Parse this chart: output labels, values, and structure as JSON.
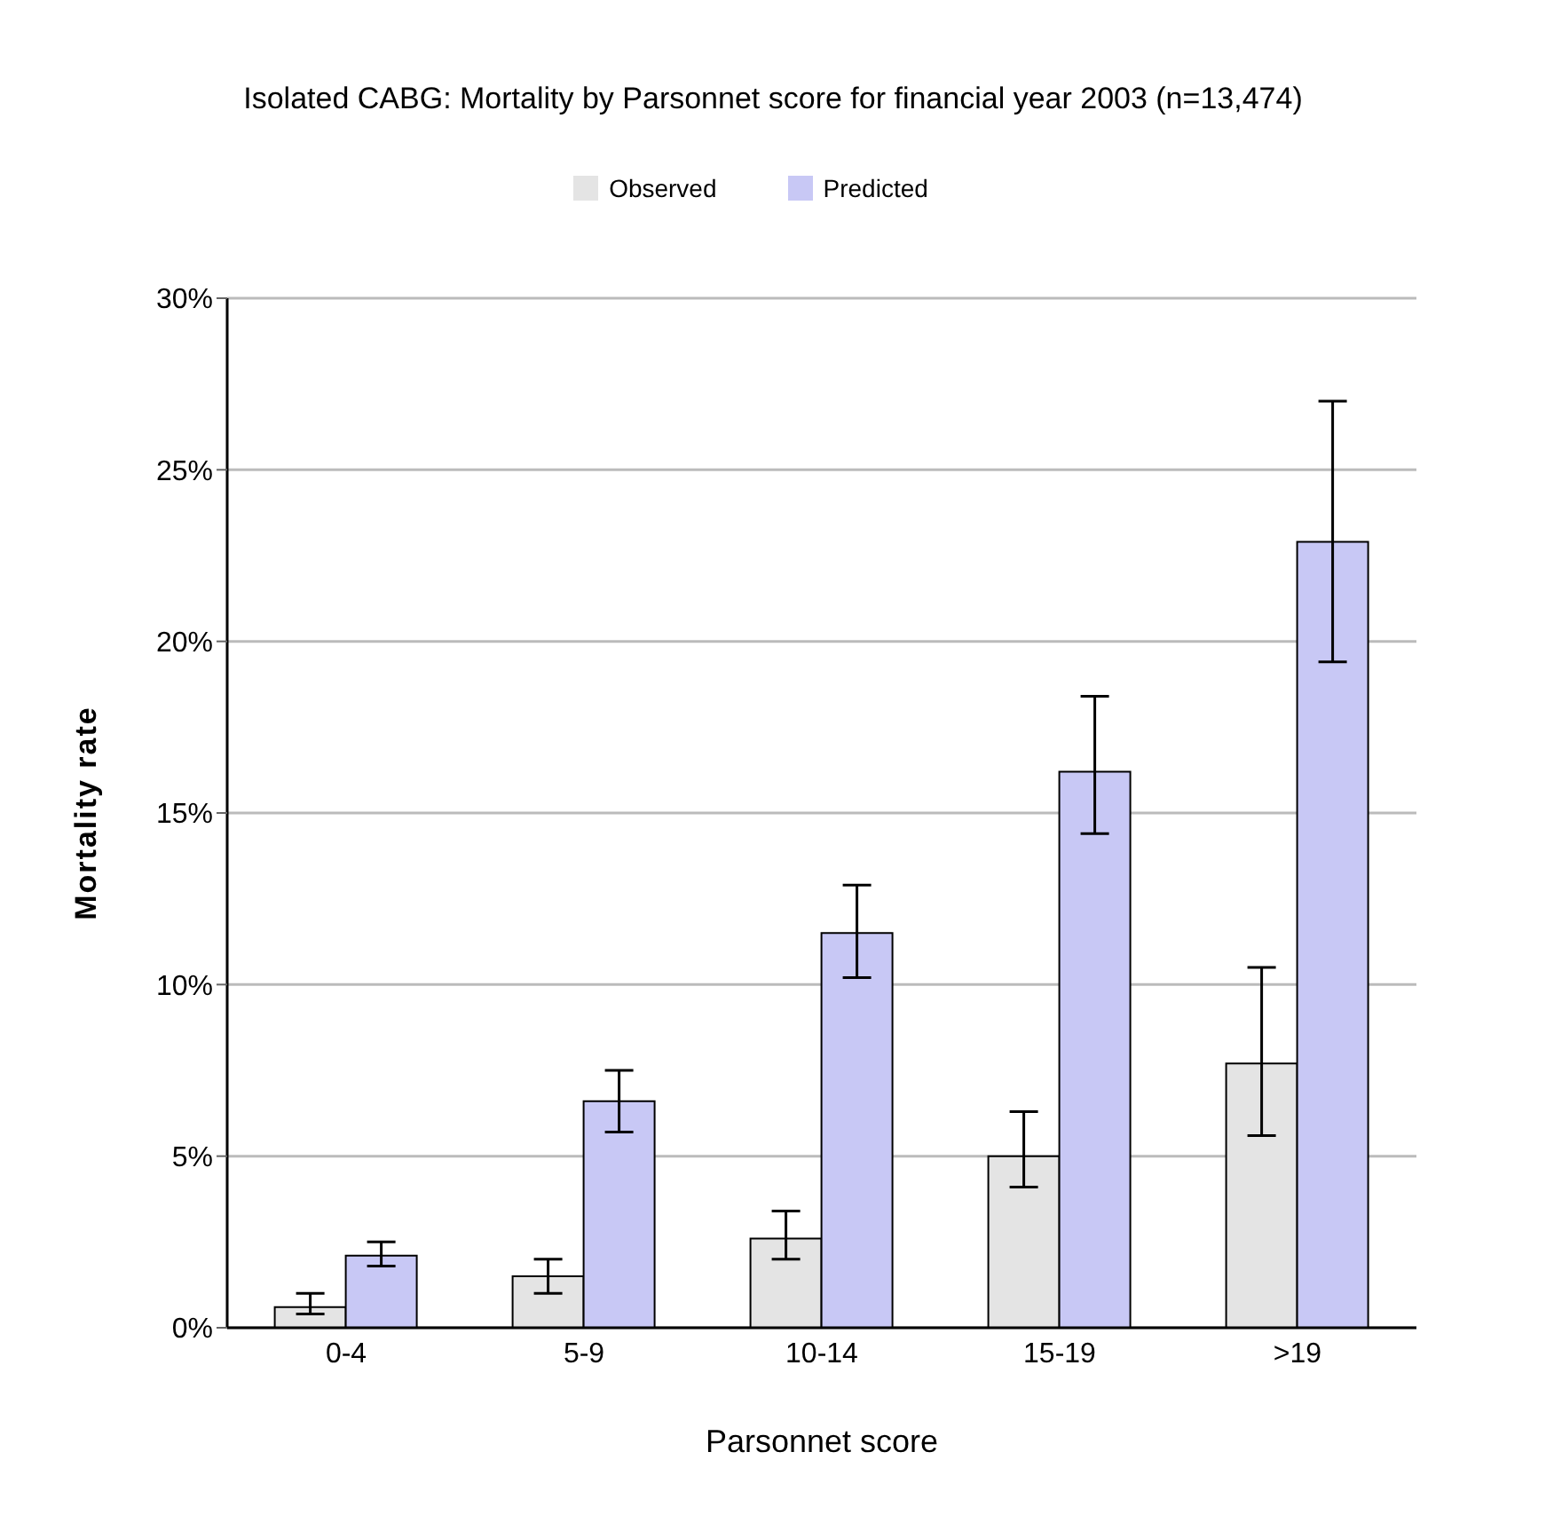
{
  "chart_data": {
    "type": "bar",
    "title": "Isolated CABG: Mortality by Parsonnet score for financial year 2003 (n=13,474)",
    "xlabel": "Parsonnet score",
    "ylabel": "Mortality rate",
    "categories": [
      "0-4",
      "5-9",
      "10-14",
      "15-19",
      ">19"
    ],
    "series": [
      {
        "name": "Observed",
        "color": "#e4e4e4",
        "values": [
          0.6,
          1.5,
          2.6,
          5.0,
          7.7
        ],
        "errors": [
          [
            0.4,
            1.0
          ],
          [
            1.0,
            2.0
          ],
          [
            2.0,
            3.4
          ],
          [
            4.1,
            6.3
          ],
          [
            5.6,
            10.5
          ]
        ]
      },
      {
        "name": "Predicted",
        "color": "#c8c8f5",
        "values": [
          2.1,
          6.6,
          11.5,
          16.2,
          22.9
        ],
        "errors": [
          [
            1.8,
            2.5
          ],
          [
            5.7,
            7.5
          ],
          [
            10.2,
            12.9
          ],
          [
            14.4,
            18.4
          ],
          [
            19.4,
            27.0
          ]
        ]
      }
    ],
    "ylim": [
      0,
      30
    ],
    "yticks": [
      {
        "value": 0,
        "label": "0%"
      },
      {
        "value": 5,
        "label": "5%"
      },
      {
        "value": 10,
        "label": "10%"
      },
      {
        "value": 15,
        "label": "15%"
      },
      {
        "value": 20,
        "label": "20%"
      },
      {
        "value": 25,
        "label": "25%"
      },
      {
        "value": 30,
        "label": "30%"
      }
    ],
    "grid": "y",
    "legend": "top"
  }
}
